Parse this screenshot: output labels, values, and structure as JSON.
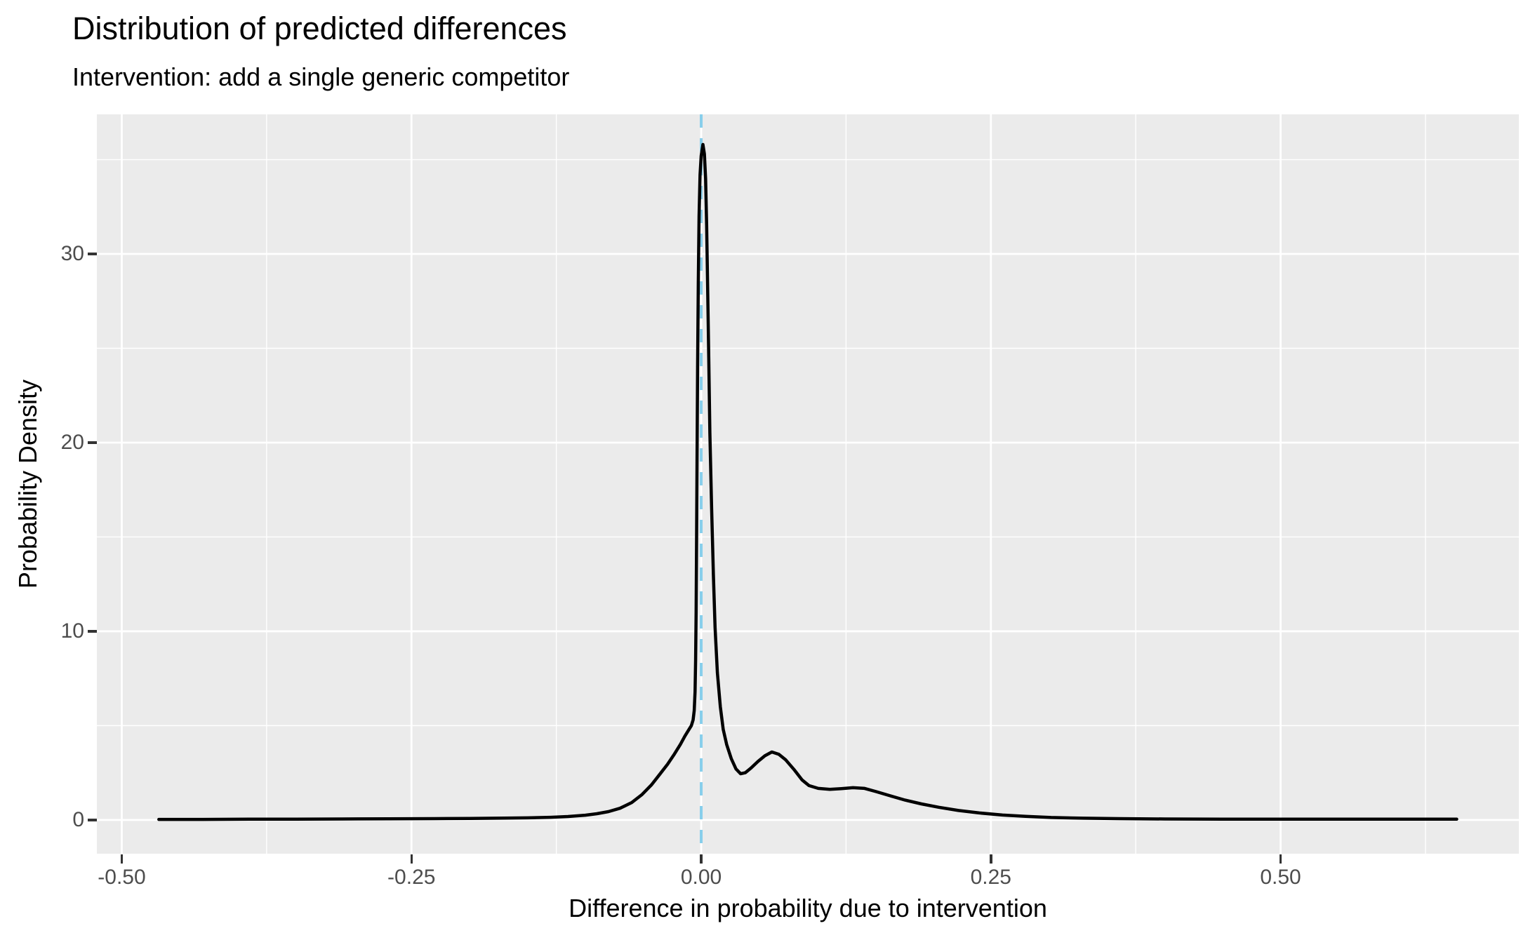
{
  "title": "Distribution of predicted differences",
  "subtitle": "Intervention: add a single generic competitor",
  "colors": {
    "panel_background": "#EBEBEB",
    "gridline": "#FFFFFF",
    "curve": "#000000",
    "reference_line": "#87CEEB",
    "tick_label": "#4D4D4D",
    "tick_mark": "#333333",
    "text": "#000000"
  },
  "chart_data": {
    "type": "line",
    "title": "Distribution of predicted differences",
    "subtitle": "Intervention: add a single generic competitor",
    "xlabel": "Difference in probability due to intervention",
    "ylabel": "Probability Density",
    "xlim": [
      -0.5215,
      0.7056
    ],
    "ylim": [
      -1.79,
      37.4
    ],
    "grid": "on",
    "legend": "none",
    "xticks": [
      {
        "v": -0.5,
        "label": "-0.50"
      },
      {
        "v": -0.25,
        "label": "-0.25"
      },
      {
        "v": 0.0,
        "label": "0.00"
      },
      {
        "v": 0.25,
        "label": "0.25"
      },
      {
        "v": 0.5,
        "label": "0.50"
      }
    ],
    "yticks": [
      {
        "v": 0,
        "label": "0"
      },
      {
        "v": 10,
        "label": "10"
      },
      {
        "v": 20,
        "label": "20"
      },
      {
        "v": 30,
        "label": "30"
      }
    ],
    "x_minor": [
      -0.375,
      -0.125,
      0.125,
      0.375,
      0.625
    ],
    "y_minor": [
      5,
      15,
      25,
      35
    ],
    "reference_line": {
      "x": 0.0,
      "style": "dashed",
      "color": "#87CEEB",
      "dash": [
        19,
        15
      ],
      "width": 4
    },
    "series": [
      {
        "name": "density",
        "color": "#000000",
        "width": 4.5,
        "points": [
          [
            -0.468,
            0.03
          ],
          [
            -0.43,
            0.03
          ],
          [
            -0.39,
            0.04
          ],
          [
            -0.35,
            0.04
          ],
          [
            -0.31,
            0.05
          ],
          [
            -0.27,
            0.06
          ],
          [
            -0.23,
            0.07
          ],
          [
            -0.2,
            0.08
          ],
          [
            -0.17,
            0.1
          ],
          [
            -0.15,
            0.11
          ],
          [
            -0.13,
            0.14
          ],
          [
            -0.115,
            0.18
          ],
          [
            -0.1,
            0.25
          ],
          [
            -0.09,
            0.33
          ],
          [
            -0.08,
            0.44
          ],
          [
            -0.07,
            0.62
          ],
          [
            -0.06,
            0.92
          ],
          [
            -0.051,
            1.35
          ],
          [
            -0.043,
            1.85
          ],
          [
            -0.036,
            2.4
          ],
          [
            -0.029,
            2.95
          ],
          [
            -0.023,
            3.5
          ],
          [
            -0.018,
            4.0
          ],
          [
            -0.014,
            4.45
          ],
          [
            -0.011,
            4.75
          ],
          [
            -0.0085,
            5.0
          ],
          [
            -0.007,
            5.3
          ],
          [
            -0.006,
            5.8
          ],
          [
            -0.0053,
            6.8
          ],
          [
            -0.0048,
            8.5
          ],
          [
            -0.0044,
            11.0
          ],
          [
            -0.004,
            14.5
          ],
          [
            -0.0036,
            19.0
          ],
          [
            -0.0031,
            24.0
          ],
          [
            -0.0025,
            28.5
          ],
          [
            -0.0018,
            32.0
          ],
          [
            -0.001,
            34.2
          ],
          [
            0.0,
            35.2
          ],
          [
            0.0015,
            35.8
          ],
          [
            0.0028,
            35.3
          ],
          [
            0.0038,
            34.0
          ],
          [
            0.0047,
            31.5
          ],
          [
            0.0055,
            28.5
          ],
          [
            0.0065,
            24.5
          ],
          [
            0.0075,
            20.5
          ],
          [
            0.009,
            16.5
          ],
          [
            0.0105,
            13.0
          ],
          [
            0.012,
            10.2
          ],
          [
            0.014,
            7.8
          ],
          [
            0.0165,
            6.0
          ],
          [
            0.019,
            4.8
          ],
          [
            0.022,
            4.0
          ],
          [
            0.026,
            3.25
          ],
          [
            0.03,
            2.7
          ],
          [
            0.034,
            2.45
          ],
          [
            0.038,
            2.5
          ],
          [
            0.043,
            2.75
          ],
          [
            0.049,
            3.1
          ],
          [
            0.055,
            3.4
          ],
          [
            0.061,
            3.6
          ],
          [
            0.067,
            3.48
          ],
          [
            0.073,
            3.18
          ],
          [
            0.08,
            2.68
          ],
          [
            0.087,
            2.12
          ],
          [
            0.093,
            1.82
          ],
          [
            0.101,
            1.67
          ],
          [
            0.111,
            1.62
          ],
          [
            0.121,
            1.66
          ],
          [
            0.131,
            1.71
          ],
          [
            0.141,
            1.67
          ],
          [
            0.151,
            1.5
          ],
          [
            0.163,
            1.28
          ],
          [
            0.176,
            1.05
          ],
          [
            0.19,
            0.85
          ],
          [
            0.205,
            0.67
          ],
          [
            0.222,
            0.5
          ],
          [
            0.24,
            0.37
          ],
          [
            0.26,
            0.26
          ],
          [
            0.28,
            0.19
          ],
          [
            0.302,
            0.13
          ],
          [
            0.33,
            0.09
          ],
          [
            0.36,
            0.07
          ],
          [
            0.4,
            0.05
          ],
          [
            0.45,
            0.04
          ],
          [
            0.5,
            0.04
          ],
          [
            0.55,
            0.04
          ],
          [
            0.6,
            0.04
          ],
          [
            0.652,
            0.04
          ]
        ]
      }
    ]
  }
}
